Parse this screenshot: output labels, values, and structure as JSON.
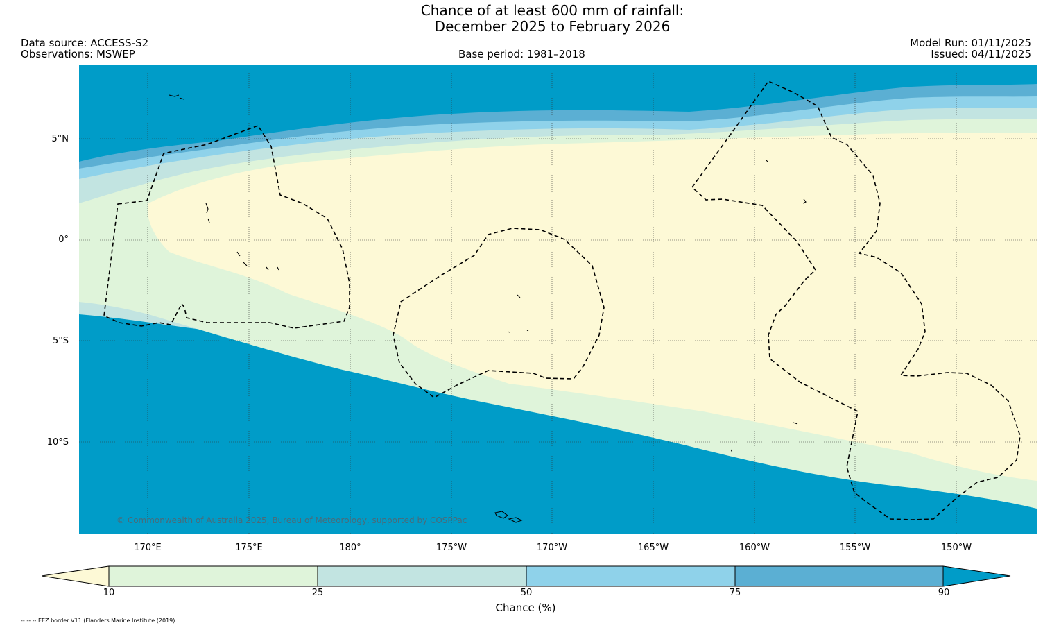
{
  "title": {
    "line1": "Chance of at least 600 mm of rainfall:",
    "line2": "December 2025 to February 2026"
  },
  "header": {
    "data_source": "Data source: ACCESS-S2",
    "observations": "Observations: MSWEP",
    "base_period": "Base period: 1981–2018",
    "model_run": "Model Run: 01/11/2025",
    "issued": "Issued: 04/11/2025"
  },
  "map": {
    "lat_labels": [
      "5°N",
      "0°",
      "5°S",
      "10°S"
    ],
    "lon_labels": [
      "170°E",
      "175°E",
      "180°",
      "175°W",
      "170°W",
      "165°W",
      "160°W",
      "155°W",
      "150°W"
    ],
    "copyright": "© Commonwealth of Australia 2025, Bureau of Meteorology, supported by COSPPac",
    "colors": {
      "lt10": "#fdf9d6",
      "b10_25": "#dff4da",
      "b25_50": "#c2e4e1",
      "b50_75": "#8fd2ea",
      "b75_90": "#5bafd3",
      "gt90": "#009cc8"
    }
  },
  "colorbar": {
    "ticks": [
      "10",
      "25",
      "50",
      "75",
      "90"
    ],
    "label": "Chance (%)"
  },
  "footer": {
    "eez_note": "-- -- -- EEZ border V11 (Flanders Marine Institute (2019)"
  }
}
